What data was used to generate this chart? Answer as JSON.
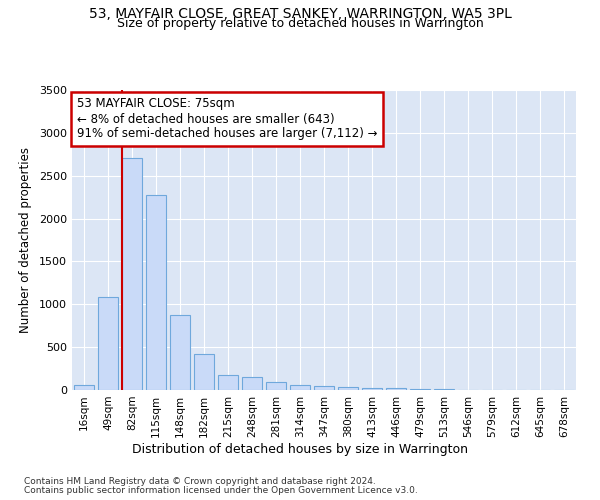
{
  "title": "53, MAYFAIR CLOSE, GREAT SANKEY, WARRINGTON, WA5 3PL",
  "subtitle": "Size of property relative to detached houses in Warrington",
  "xlabel": "Distribution of detached houses by size in Warrington",
  "ylabel": "Number of detached properties",
  "bar_labels": [
    "16sqm",
    "49sqm",
    "82sqm",
    "115sqm",
    "148sqm",
    "182sqm",
    "215sqm",
    "248sqm",
    "281sqm",
    "314sqm",
    "347sqm",
    "380sqm",
    "413sqm",
    "446sqm",
    "479sqm",
    "513sqm",
    "546sqm",
    "579sqm",
    "612sqm",
    "645sqm",
    "678sqm"
  ],
  "bar_values": [
    55,
    1090,
    2710,
    2270,
    870,
    415,
    175,
    155,
    90,
    60,
    45,
    38,
    28,
    18,
    12,
    7,
    4,
    3,
    3,
    2,
    2
  ],
  "bar_color": "#c9daf8",
  "bar_edge_color": "#6fa8dc",
  "vline_color": "#cc0000",
  "vline_x": 2.0,
  "annotation_line1": "53 MAYFAIR CLOSE: 75sqm",
  "annotation_line2": "← 8% of detached houses are smaller (643)",
  "annotation_line3": "91% of semi-detached houses are larger (7,112) →",
  "ylim": [
    0,
    3500
  ],
  "yticks": [
    0,
    500,
    1000,
    1500,
    2000,
    2500,
    3000,
    3500
  ],
  "bg_color": "#dce6f5",
  "grid_color": "#ffffff",
  "footer1": "Contains HM Land Registry data © Crown copyright and database right 2024.",
  "footer2": "Contains public sector information licensed under the Open Government Licence v3.0."
}
